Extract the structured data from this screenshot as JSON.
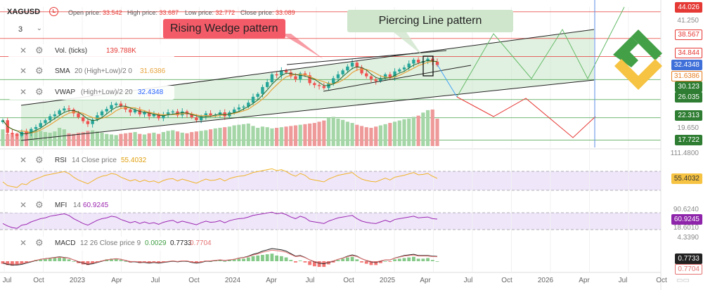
{
  "header": {
    "symbol": "XAGUSD",
    "open_label": "Open price:",
    "open_value": "33.542",
    "high_label": "High price:",
    "high_value": "33.687",
    "low_label": "Low price:",
    "low_value": "32.772",
    "close_label": "Close price:",
    "close_value": "33.089",
    "timeframe": "3"
  },
  "legend": {
    "vol": {
      "name": "Vol. (ticks)",
      "value": "139.788K"
    },
    "sma": {
      "name": "SMA",
      "params": "20 (High+Low)/2 0",
      "value": "31.6386"
    },
    "vwap": {
      "name": "VWAP",
      "params": "(High+Low)/2 20",
      "value": "32.4348"
    },
    "rsi": {
      "name": "RSI",
      "params": "14 Close price",
      "value": "55.4032"
    },
    "mfi": {
      "name": "MFI",
      "params": "14",
      "value": "60.9245"
    },
    "macd": {
      "name": "MACD",
      "params": "12 26 Close price 9",
      "v1": "0.0029",
      "v2": "0.7733",
      "v3": "0.7704"
    }
  },
  "annotations": {
    "rising_wedge": "Rising Wedge pattern",
    "piercing_line": "Piercing Line pattern"
  },
  "colors": {
    "up": "#26a69a",
    "down": "#ef5350",
    "sma": "#e6a23c",
    "vwap": "#2962ff",
    "rsi": "#f0b429",
    "mfi": "#9c27b0",
    "macd": "#222222",
    "signal": "#e57373",
    "forecast_up": "#66bb6a",
    "forecast_down": "#e53935",
    "forecast_mid": "#42a5f5",
    "level_red": "#e53935",
    "level_green": "#43a047"
  },
  "price_axis": {
    "labels": [
      {
        "text": "44.026",
        "style": "red"
      },
      {
        "text": "41.250",
        "style": "plain"
      },
      {
        "text": "38.567",
        "style": "red-outline"
      },
      {
        "text": "34.844",
        "style": "red-outline"
      },
      {
        "text": "32.4348",
        "style": "blue"
      },
      {
        "text": "31.6386",
        "style": "orange"
      },
      {
        "text": "30.123",
        "style": "green"
      },
      {
        "text": "26.035",
        "style": "green"
      },
      {
        "text": "22.313",
        "style": "green"
      },
      {
        "text": "19.650",
        "style": "plain"
      },
      {
        "text": "17.722",
        "style": "green"
      }
    ],
    "rsi_labels": [
      {
        "text": "111.4800",
        "style": "plain"
      },
      {
        "text": "55.4032",
        "style": "yellow"
      }
    ],
    "mfi_labels": [
      {
        "text": "90.6240",
        "style": "plain"
      },
      {
        "text": "60.9245",
        "style": "purple"
      },
      {
        "text": "18.6010",
        "style": "plain"
      }
    ],
    "macd_labels": [
      {
        "text": "4.3390",
        "style": "plain"
      },
      {
        "text": "0.7733",
        "style": "dark"
      },
      {
        "text": "0.7704",
        "style": "pink"
      }
    ]
  },
  "time_axis": [
    "Jul",
    "Oct",
    "2023",
    "Apr",
    "Jul",
    "Oct",
    "2024",
    "Apr",
    "Jul",
    "Oct",
    "2025",
    "Apr",
    "Jul",
    "Oct",
    "2026",
    "Apr",
    "Jul",
    "Oct"
  ],
  "chart_data": {
    "type": "candlestick",
    "symbol": "XAGUSD",
    "last_bar": {
      "open": 33.542,
      "high": 33.687,
      "low": 32.772,
      "close": 33.089
    },
    "levels": [
      44.026,
      38.567,
      34.844,
      30.123,
      26.035,
      22.313,
      17.722
    ],
    "closes": [
      21.8,
      19.2,
      18.9,
      18.6,
      19.4,
      19.1,
      20.0,
      20.4,
      21.2,
      21.8,
      22.6,
      23.0,
      23.8,
      24.2,
      24.0,
      23.2,
      22.4,
      21.6,
      21.0,
      21.9,
      22.8,
      23.6,
      24.1,
      24.9,
      25.2,
      24.6,
      24.0,
      23.4,
      23.9,
      23.0,
      23.5,
      22.6,
      23.0,
      22.2,
      23.0,
      23.4,
      23.6,
      22.8,
      23.6,
      23.0,
      22.4,
      21.8,
      22.6,
      23.2,
      22.8,
      22.9,
      23.4,
      22.6,
      23.4,
      24.0,
      24.4,
      24.6,
      25.4,
      26.6,
      27.2,
      28.6,
      29.6,
      31.2,
      31.0,
      32.0,
      31.6,
      30.8,
      30.2,
      31.4,
      31.0,
      29.4,
      29.0,
      28.8,
      28.4,
      29.4,
      30.4,
      31.2,
      32.0,
      32.8,
      33.6,
      32.6,
      31.4,
      30.8,
      30.2,
      29.8,
      30.4,
      31.2,
      30.6,
      31.8,
      32.2,
      32.6,
      33.4,
      34.2,
      33.6,
      33.9,
      34.4,
      33.8,
      33.089
    ],
    "volumes": [
      55,
      40,
      38,
      42,
      45,
      50,
      48,
      52,
      50,
      46,
      44,
      48,
      60,
      55,
      42,
      40,
      44,
      46,
      50,
      52,
      48,
      44,
      40,
      38,
      36,
      40,
      42,
      44,
      46,
      40,
      38,
      42,
      44,
      40,
      46,
      50,
      52,
      48,
      44,
      42,
      46,
      48,
      50,
      52,
      55,
      58,
      60,
      62,
      64,
      68,
      70,
      72,
      74,
      66,
      60,
      64,
      62,
      58,
      60,
      62,
      64,
      66,
      68,
      70,
      72,
      74,
      76,
      80,
      84,
      92,
      96,
      90,
      86,
      80,
      76,
      70,
      66,
      62,
      60,
      64,
      68,
      72,
      76,
      80,
      84,
      88,
      90,
      96,
      100,
      110,
      118,
      120,
      90
    ],
    "rsi": [
      48,
      40,
      38,
      36,
      44,
      42,
      50,
      54,
      58,
      62,
      64,
      66,
      68,
      70,
      66,
      58,
      52,
      48,
      44,
      50,
      56,
      60,
      62,
      66,
      64,
      58,
      54,
      50,
      53,
      48,
      52,
      48,
      50,
      46,
      51,
      54,
      55,
      50,
      54,
      51,
      48,
      45,
      50,
      54,
      51,
      52,
      55,
      50,
      55,
      58,
      60,
      61,
      64,
      68,
      70,
      72,
      74,
      76,
      72,
      74,
      70,
      64,
      60,
      66,
      62,
      54,
      52,
      50,
      48,
      54,
      58,
      62,
      64,
      66,
      68,
      60,
      54,
      51,
      49,
      48,
      52,
      56,
      52,
      58,
      60,
      62,
      65,
      68,
      63,
      64,
      66,
      60,
      55.4
    ],
    "mfi": [
      50,
      44,
      40,
      38,
      46,
      48,
      54,
      58,
      62,
      64,
      68,
      70,
      72,
      74,
      70,
      62,
      56,
      50,
      46,
      52,
      58,
      62,
      64,
      68,
      66,
      60,
      56,
      52,
      55,
      50,
      54,
      50,
      52,
      48,
      53,
      56,
      58,
      52,
      56,
      53,
      50,
      47,
      52,
      56,
      53,
      54,
      57,
      52,
      57,
      60,
      62,
      63,
      66,
      70,
      72,
      74,
      76,
      78,
      74,
      76,
      72,
      66,
      62,
      68,
      64,
      56,
      54,
      52,
      50,
      56,
      60,
      64,
      66,
      68,
      70,
      62,
      56,
      53,
      51,
      50,
      54,
      58,
      54,
      60,
      62,
      64,
      66,
      68,
      64,
      65,
      66,
      62,
      60.9
    ],
    "macd_hist": [
      -0.4,
      -0.6,
      -0.7,
      -0.6,
      -0.4,
      -0.2,
      0.0,
      0.2,
      0.3,
      0.4,
      0.5,
      0.5,
      0.6,
      0.5,
      0.3,
      0.0,
      -0.3,
      -0.5,
      -0.6,
      -0.4,
      -0.2,
      0.1,
      0.3,
      0.4,
      0.4,
      0.2,
      0.0,
      -0.2,
      -0.1,
      -0.3,
      -0.2,
      -0.3,
      -0.2,
      -0.3,
      -0.1,
      0.0,
      0.1,
      -0.1,
      0.1,
      0.0,
      -0.2,
      -0.3,
      -0.1,
      0.1,
      0.0,
      0.1,
      0.2,
      0.0,
      0.2,
      0.3,
      0.4,
      0.4,
      0.6,
      0.8,
      0.9,
      1.0,
      1.1,
      1.2,
      0.9,
      0.8,
      0.6,
      0.2,
      -0.2,
      0.1,
      -0.2,
      -0.6,
      -0.8,
      -0.9,
      -0.9,
      -0.5,
      -0.2,
      0.2,
      0.4,
      0.6,
      0.7,
      0.3,
      -0.2,
      -0.4,
      -0.6,
      -0.6,
      -0.3,
      0.0,
      -0.1,
      0.3,
      0.4,
      0.5,
      0.6,
      0.7,
      0.4,
      0.4,
      0.5,
      0.2,
      0.0
    ],
    "macd_line": [
      -0.3,
      -0.5,
      -0.6,
      -0.6,
      -0.5,
      -0.3,
      -0.1,
      0.1,
      0.3,
      0.4,
      0.5,
      0.6,
      0.7,
      0.6,
      0.5,
      0.2,
      -0.1,
      -0.3,
      -0.5,
      -0.4,
      -0.2,
      0.0,
      0.2,
      0.3,
      0.4,
      0.3,
      0.1,
      -0.1,
      -0.1,
      -0.2,
      -0.2,
      -0.3,
      -0.2,
      -0.3,
      -0.2,
      -0.1,
      0.0,
      -0.1,
      0.0,
      0.0,
      -0.2,
      -0.3,
      -0.2,
      0.0,
      0.0,
      0.1,
      0.2,
      0.1,
      0.2,
      0.3,
      0.5,
      0.6,
      0.8,
      1.1,
      1.3,
      1.6,
      1.8,
      2.0,
      1.9,
      1.8,
      1.6,
      1.2,
      0.8,
      0.9,
      0.6,
      0.2,
      -0.1,
      -0.3,
      -0.4,
      -0.2,
      0.0,
      0.3,
      0.5,
      0.8,
      1.0,
      0.8,
      0.4,
      0.1,
      -0.1,
      -0.2,
      0.0,
      0.2,
      0.2,
      0.5,
      0.7,
      0.9,
      1.0,
      1.1,
      0.9,
      0.9,
      0.9,
      0.8,
      0.77
    ]
  }
}
